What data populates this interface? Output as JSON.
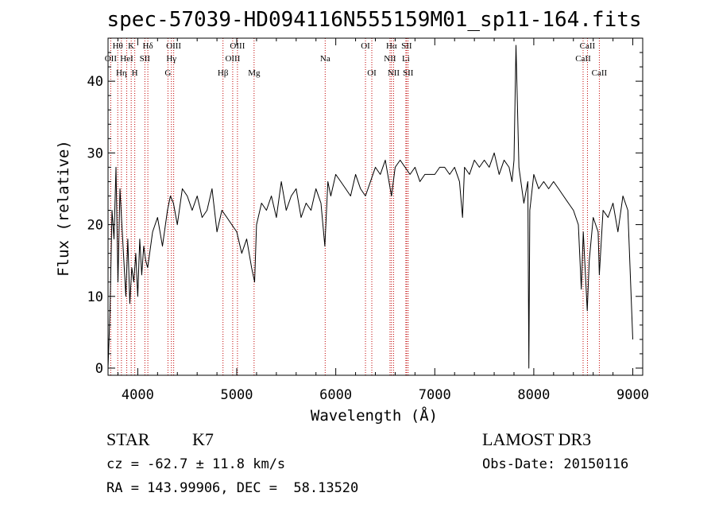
{
  "chart_data": {
    "type": "line",
    "title": "spec-57039-HD094116N555159M01_sp11-164.fits",
    "xlabel": "Wavelength (Å)",
    "ylabel": "Flux (relative)",
    "xlim": [
      3700,
      9100
    ],
    "ylim": [
      -1,
      46
    ],
    "x_ticks": [
      4000,
      5000,
      6000,
      7000,
      8000,
      9000
    ],
    "y_ticks": [
      0,
      10,
      20,
      30,
      40
    ],
    "grid": false,
    "series": [
      {
        "name": "flux",
        "color": "#000000",
        "x": [
          3700,
          3720,
          3740,
          3760,
          3780,
          3800,
          3820,
          3840,
          3860,
          3880,
          3900,
          3920,
          3940,
          3960,
          3980,
          4000,
          4020,
          4040,
          4060,
          4080,
          4100,
          4150,
          4200,
          4250,
          4300,
          4330,
          4360,
          4400,
          4450,
          4500,
          4550,
          4600,
          4650,
          4700,
          4750,
          4800,
          4850,
          4900,
          4950,
          5000,
          5050,
          5100,
          5150,
          5180,
          5200,
          5250,
          5300,
          5350,
          5400,
          5450,
          5500,
          5550,
          5600,
          5650,
          5700,
          5750,
          5800,
          5850,
          5890,
          5920,
          5950,
          6000,
          6050,
          6100,
          6150,
          6200,
          6250,
          6300,
          6350,
          6400,
          6450,
          6500,
          6550,
          6563,
          6600,
          6650,
          6700,
          6750,
          6800,
          6850,
          6900,
          6950,
          7000,
          7050,
          7100,
          7150,
          7200,
          7250,
          7280,
          7300,
          7350,
          7400,
          7450,
          7500,
          7550,
          7600,
          7650,
          7700,
          7750,
          7780,
          7800,
          7820,
          7850,
          7900,
          7940,
          7950,
          7960,
          8000,
          8050,
          8100,
          8150,
          8200,
          8250,
          8300,
          8350,
          8400,
          8450,
          8480,
          8500,
          8540,
          8560,
          8600,
          8650,
          8662,
          8700,
          8750,
          8800,
          8850,
          8900,
          8950,
          9000
        ],
        "values": [
          0,
          8,
          22,
          18,
          28,
          12,
          25,
          20,
          15,
          10,
          18,
          9,
          14,
          12,
          16,
          10,
          18,
          13,
          17,
          15,
          14,
          19,
          21,
          17,
          22,
          24,
          23,
          20,
          25,
          24,
          22,
          24,
          21,
          22,
          25,
          19,
          22,
          21,
          20,
          19,
          16,
          18,
          14,
          12,
          20,
          23,
          22,
          24,
          21,
          26,
          22,
          24,
          25,
          21,
          23,
          22,
          25,
          23,
          17,
          26,
          24,
          27,
          26,
          25,
          24,
          27,
          25,
          24,
          26,
          28,
          27,
          29,
          25,
          24,
          28,
          29,
          28,
          27,
          28,
          26,
          27,
          27,
          27,
          28,
          28,
          27,
          28,
          26,
          21,
          28,
          27,
          29,
          28,
          29,
          28,
          30,
          27,
          29,
          28,
          26,
          29,
          45,
          28,
          23,
          26,
          0,
          22,
          27,
          25,
          26,
          25,
          26,
          25,
          24,
          23,
          22,
          20,
          11,
          19,
          8,
          15,
          21,
          19,
          13,
          22,
          21,
          23,
          19,
          24,
          22,
          4
        ]
      }
    ],
    "lines": [
      {
        "label": "Hθ",
        "wavelength": 3798,
        "row": 1
      },
      {
        "label": "OII",
        "wavelength": 3727,
        "row": 2
      },
      {
        "label": "Hη",
        "wavelength": 3835,
        "row": 3
      },
      {
        "label": "K",
        "wavelength": 3934,
        "row": 1
      },
      {
        "label": "HeI",
        "wavelength": 3889,
        "row": 2
      },
      {
        "label": "H",
        "wavelength": 3970,
        "row": 3
      },
      {
        "label": "Hδ",
        "wavelength": 4102,
        "row": 1
      },
      {
        "label": "SII",
        "wavelength": 4072,
        "row": 2
      },
      {
        "label": "OIII",
        "wavelength": 4363,
        "row": 1
      },
      {
        "label": "Hγ",
        "wavelength": 4340,
        "row": 2
      },
      {
        "label": "G",
        "wavelength": 4305,
        "row": 3
      },
      {
        "label": "Hβ",
        "wavelength": 4861,
        "row": 3
      },
      {
        "label": "OIII",
        "wavelength": 5007,
        "row": 1
      },
      {
        "label": "OIII",
        "wavelength": 4959,
        "row": 2
      },
      {
        "label": "Mg",
        "wavelength": 5175,
        "row": 3
      },
      {
        "label": "Na",
        "wavelength": 5893,
        "row": 2
      },
      {
        "label": "OI",
        "wavelength": 6300,
        "row": 1
      },
      {
        "label": "OI",
        "wavelength": 6364,
        "row": 3
      },
      {
        "label": "Hα",
        "wavelength": 6563,
        "row": 1
      },
      {
        "label": "NII",
        "wavelength": 6548,
        "row": 2
      },
      {
        "label": "NII",
        "wavelength": 6584,
        "row": 3
      },
      {
        "label": "SII",
        "wavelength": 6716,
        "row": 1
      },
      {
        "label": "Li",
        "wavelength": 6708,
        "row": 2
      },
      {
        "label": "SII",
        "wavelength": 6731,
        "row": 3
      },
      {
        "label": "CaII",
        "wavelength": 8542,
        "row": 1
      },
      {
        "label": "CaII",
        "wavelength": 8498,
        "row": 2
      },
      {
        "label": "CaII",
        "wavelength": 8662,
        "row": 3
      }
    ]
  },
  "info": {
    "object_class": "STAR",
    "subclass": "K7",
    "redshift_text": "cz = -62.7 ± 11.8 km/s",
    "coords_text": "RA = 143.99906, DEC =  58.13520",
    "survey": "LAMOST DR3",
    "obs_date": "Obs-Date: 20150116"
  }
}
